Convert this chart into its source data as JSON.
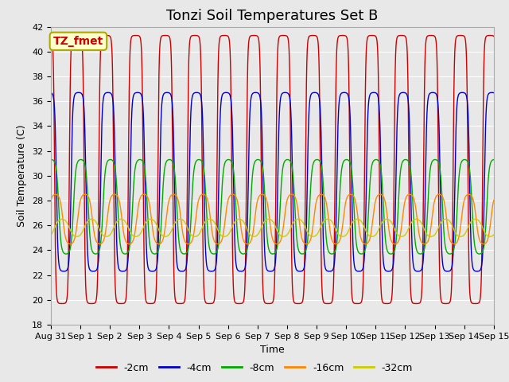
{
  "title": "Tonzi Soil Temperatures Set B",
  "xlabel": "Time",
  "ylabel": "Soil Temperature (C)",
  "ylim": [
    18,
    42
  ],
  "yticks": [
    18,
    20,
    22,
    24,
    26,
    28,
    30,
    32,
    34,
    36,
    38,
    40,
    42
  ],
  "xtick_labels": [
    "Aug 31",
    "Sep 1",
    "Sep 2",
    "Sep 3",
    "Sep 4",
    "Sep 5",
    "Sep 6",
    "Sep 7",
    "Sep 8",
    "Sep 9",
    "Sep 10",
    "Sep 11",
    "Sep 12",
    "Sep 13",
    "Sep 14",
    "Sep 15"
  ],
  "annotation_text": "TZ_fmet",
  "annotation_color": "#cc0000",
  "annotation_bg": "#ffffcc",
  "annotation_border": "#aaaa00",
  "bg_color": "#e8e8e8",
  "series": [
    {
      "label": "-2cm",
      "color": "#cc0000",
      "amplitude": 10.8,
      "mean": 30.5,
      "phase": 0.0,
      "sharpness": 4.0
    },
    {
      "label": "-4cm",
      "color": "#0000cc",
      "amplitude": 7.2,
      "mean": 29.5,
      "phase": 0.06,
      "sharpness": 3.0
    },
    {
      "label": "-8cm",
      "color": "#00aa00",
      "amplitude": 3.8,
      "mean": 27.5,
      "phase": 0.14,
      "sharpness": 2.0
    },
    {
      "label": "-16cm",
      "color": "#ff8800",
      "amplitude": 2.0,
      "mean": 26.5,
      "phase": 0.28,
      "sharpness": 1.5
    },
    {
      "label": "-32cm",
      "color": "#cccc00",
      "amplitude": 0.7,
      "mean": 25.8,
      "phase": 0.5,
      "sharpness": 1.0
    }
  ],
  "n_days": 15,
  "points_per_day": 288,
  "figsize": [
    6.4,
    4.8
  ],
  "dpi": 100,
  "title_fontsize": 13,
  "axis_label_fontsize": 9,
  "tick_fontsize": 8,
  "legend_fontsize": 9,
  "linewidth": 1.0
}
